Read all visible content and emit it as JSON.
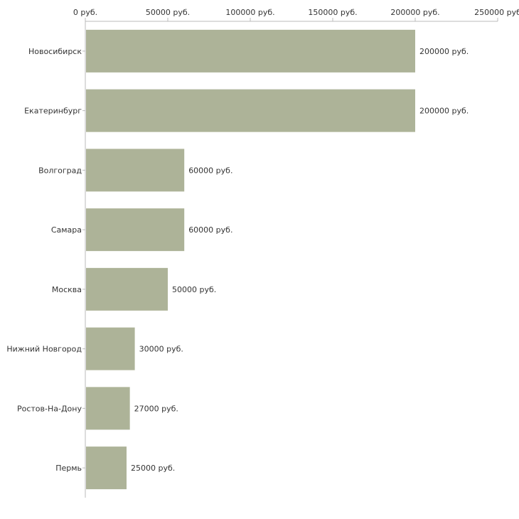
{
  "chart_data": {
    "type": "bar",
    "orientation": "horizontal",
    "title": "",
    "xlabel": "",
    "ylabel": "",
    "xlim": [
      0,
      250000
    ],
    "x_ticks": [
      0,
      50000,
      100000,
      150000,
      200000,
      250000
    ],
    "x_tick_labels": [
      "0 руб.",
      "50000 руб.",
      "100000 руб.",
      "150000 руб.",
      "200000 руб.",
      "250000 руб"
    ],
    "categories": [
      "Новосибирск",
      "Екатеринбург",
      "Волгоград",
      "Самара",
      "Москва",
      "Нижний Новгород",
      "Ростов-На-Дону",
      "Пермь"
    ],
    "values": [
      200000,
      200000,
      60000,
      60000,
      50000,
      30000,
      27000,
      25000
    ],
    "value_labels": [
      "200000 руб.",
      "200000 руб.",
      "60000 руб.",
      "60000 руб.",
      "50000 руб.",
      "30000 руб.",
      "27000 руб.",
      "25000 руб."
    ],
    "bar_color": "#adb398",
    "grid": false,
    "axis_position": "top"
  }
}
